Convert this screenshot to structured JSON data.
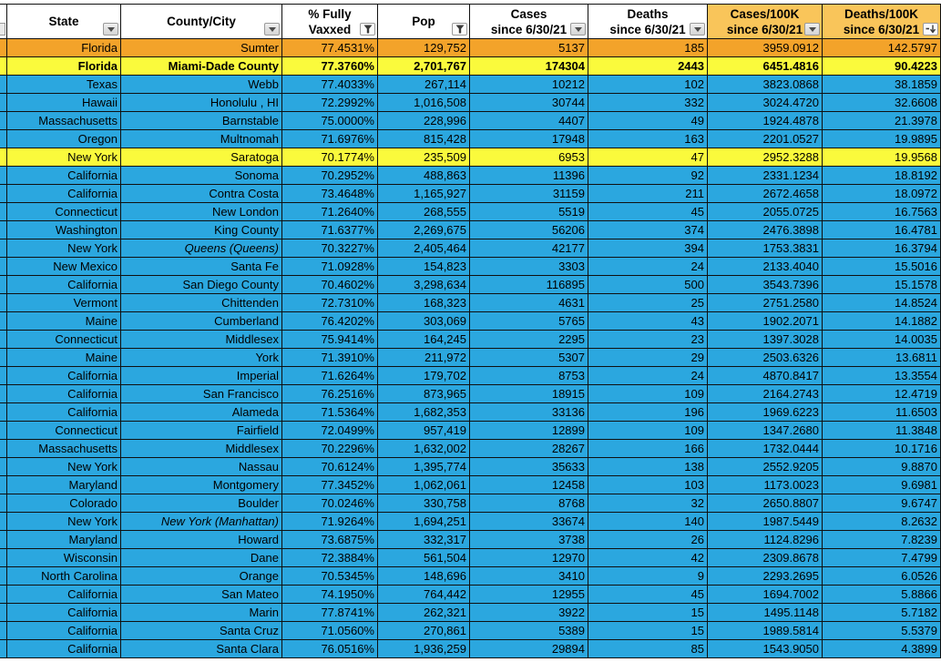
{
  "colors": {
    "row_blue": "#2BA7DF",
    "row_orange": "#F3A32A",
    "row_yellow": "#FAFA3C",
    "header_orange": "#F9C55A",
    "grid_border": "#101010",
    "text": "#000000"
  },
  "table": {
    "columns": [
      {
        "id": "state",
        "line1": "State",
        "line2": "",
        "icon": "dropdown",
        "bg": "white"
      },
      {
        "id": "county-city",
        "line1": "County/City",
        "line2": "",
        "icon": "dropdown",
        "bg": "white"
      },
      {
        "id": "pct-fully-vaxxed",
        "line1": "% Fully",
        "line2": "Vaxxed",
        "icon": "funnel",
        "bg": "white"
      },
      {
        "id": "pop",
        "line1": "Pop",
        "line2": "",
        "icon": "funnel",
        "bg": "white"
      },
      {
        "id": "cases-since",
        "line1": "Cases",
        "line2": "since 6/30/21",
        "icon": "dropdown",
        "bg": "white"
      },
      {
        "id": "deaths-since",
        "line1": "Deaths",
        "line2": "since 6/30/21",
        "icon": "dropdown",
        "bg": "white"
      },
      {
        "id": "cases-100k",
        "line1": "Cases/100K",
        "line2": "since 6/30/21",
        "icon": "dropdown",
        "bg": "orange"
      },
      {
        "id": "deaths-100k",
        "line1": "Deaths/100K",
        "line2": "since 6/30/21",
        "icon": "sort-down",
        "bg": "orange"
      }
    ],
    "rows": [
      {
        "cells": [
          "Florida",
          "Sumter",
          "77.4531%",
          "129,752",
          "5137",
          "185",
          "3959.0912",
          "142.5797"
        ],
        "bg": "orange"
      },
      {
        "cells": [
          "Florida",
          "Miami-Dade County",
          "77.3760%",
          "2,701,767",
          "174304",
          "2443",
          "6451.4816",
          "90.4223"
        ],
        "bg": "yellow",
        "bold": true
      },
      {
        "cells": [
          "Texas",
          "Webb",
          "77.4033%",
          "267,114",
          "10212",
          "102",
          "3823.0868",
          "38.1859"
        ]
      },
      {
        "cells": [
          "Hawaii",
          "Honolulu , HI",
          "72.2992%",
          "1,016,508",
          "30744",
          "332",
          "3024.4720",
          "32.6608"
        ]
      },
      {
        "cells": [
          "Massachusetts",
          "Barnstable",
          "75.0000%",
          "228,996",
          "4407",
          "49",
          "1924.4878",
          "21.3978"
        ]
      },
      {
        "cells": [
          "Oregon",
          "Multnomah",
          "71.6976%",
          "815,428",
          "17948",
          "163",
          "2201.0527",
          "19.9895"
        ]
      },
      {
        "cells": [
          "New York",
          "Saratoga",
          "70.1774%",
          "235,509",
          "6953",
          "47",
          "2952.3288",
          "19.9568"
        ],
        "bg": "yellow"
      },
      {
        "cells": [
          "California",
          "Sonoma",
          "70.2952%",
          "488,863",
          "11396",
          "92",
          "2331.1234",
          "18.8192"
        ]
      },
      {
        "cells": [
          "California",
          "Contra Costa",
          "73.4648%",
          "1,165,927",
          "31159",
          "211",
          "2672.4658",
          "18.0972"
        ]
      },
      {
        "cells": [
          "Connecticut",
          "New London",
          "71.2640%",
          "268,555",
          "5519",
          "45",
          "2055.0725",
          "16.7563"
        ]
      },
      {
        "cells": [
          "Washington",
          "King County",
          "71.6377%",
          "2,269,675",
          "56206",
          "374",
          "2476.3898",
          "16.4781"
        ]
      },
      {
        "cells": [
          "New York",
          "Queens  (Queens)",
          "70.3227%",
          "2,405,464",
          "42177",
          "394",
          "1753.3831",
          "16.3794"
        ],
        "county_italic": true
      },
      {
        "cells": [
          "New Mexico",
          "Santa Fe",
          "71.0928%",
          "154,823",
          "3303",
          "24",
          "2133.4040",
          "15.5016"
        ]
      },
      {
        "cells": [
          "California",
          "San Diego County",
          "70.4602%",
          "3,298,634",
          "116895",
          "500",
          "3543.7396",
          "15.1578"
        ]
      },
      {
        "cells": [
          "Vermont",
          "Chittenden",
          "72.7310%",
          "168,323",
          "4631",
          "25",
          "2751.2580",
          "14.8524"
        ]
      },
      {
        "cells": [
          "Maine",
          "Cumberland",
          "76.4202%",
          "303,069",
          "5765",
          "43",
          "1902.2071",
          "14.1882"
        ]
      },
      {
        "cells": [
          "Connecticut",
          "Middlesex",
          "75.9414%",
          "164,245",
          "2295",
          "23",
          "1397.3028",
          "14.0035"
        ]
      },
      {
        "cells": [
          "Maine",
          "York",
          "71.3910%",
          "211,972",
          "5307",
          "29",
          "2503.6326",
          "13.6811"
        ]
      },
      {
        "cells": [
          "California",
          "Imperial",
          "71.6264%",
          "179,702",
          "8753",
          "24",
          "4870.8417",
          "13.3554"
        ]
      },
      {
        "cells": [
          "California",
          "San Francisco",
          "76.2516%",
          "873,965",
          "18915",
          "109",
          "2164.2743",
          "12.4719"
        ]
      },
      {
        "cells": [
          "California",
          "Alameda",
          "71.5364%",
          "1,682,353",
          "33136",
          "196",
          "1969.6223",
          "11.6503"
        ]
      },
      {
        "cells": [
          "Connecticut",
          "Fairfield",
          "72.0499%",
          "957,419",
          "12899",
          "109",
          "1347.2680",
          "11.3848"
        ]
      },
      {
        "cells": [
          "Massachusetts",
          "Middlesex",
          "70.2296%",
          "1,632,002",
          "28267",
          "166",
          "1732.0444",
          "10.1716"
        ]
      },
      {
        "cells": [
          "New York",
          "Nassau",
          "70.6124%",
          "1,395,774",
          "35633",
          "138",
          "2552.9205",
          "9.8870"
        ]
      },
      {
        "cells": [
          "Maryland",
          "Montgomery",
          "77.3452%",
          "1,062,061",
          "12458",
          "103",
          "1173.0023",
          "9.6981"
        ]
      },
      {
        "cells": [
          "Colorado",
          "Boulder",
          "70.0246%",
          "330,758",
          "8768",
          "32",
          "2650.8807",
          "9.6747"
        ]
      },
      {
        "cells": [
          "New York",
          "New York  (Manhattan)",
          "71.9264%",
          "1,694,251",
          "33674",
          "140",
          "1987.5449",
          "8.2632"
        ],
        "county_italic": true
      },
      {
        "cells": [
          "Maryland",
          "Howard",
          "73.6875%",
          "332,317",
          "3738",
          "26",
          "1124.8296",
          "7.8239"
        ]
      },
      {
        "cells": [
          "Wisconsin",
          "Dane",
          "72.3884%",
          "561,504",
          "12970",
          "42",
          "2309.8678",
          "7.4799"
        ]
      },
      {
        "cells": [
          "North Carolina",
          "Orange",
          "70.5345%",
          "148,696",
          "3410",
          "9",
          "2293.2695",
          "6.0526"
        ]
      },
      {
        "cells": [
          "California",
          "San Mateo",
          "74.1950%",
          "764,442",
          "12955",
          "45",
          "1694.7002",
          "5.8866"
        ]
      },
      {
        "cells": [
          "California",
          "Marin",
          "77.8741%",
          "262,321",
          "3922",
          "15",
          "1495.1148",
          "5.7182"
        ]
      },
      {
        "cells": [
          "California",
          "Santa Cruz",
          "71.0560%",
          "270,861",
          "5389",
          "15",
          "1989.5814",
          "5.5379"
        ]
      },
      {
        "cells": [
          "California",
          "Santa Clara",
          "76.0516%",
          "1,936,259",
          "29894",
          "85",
          "1543.9050",
          "4.3899"
        ]
      }
    ]
  }
}
